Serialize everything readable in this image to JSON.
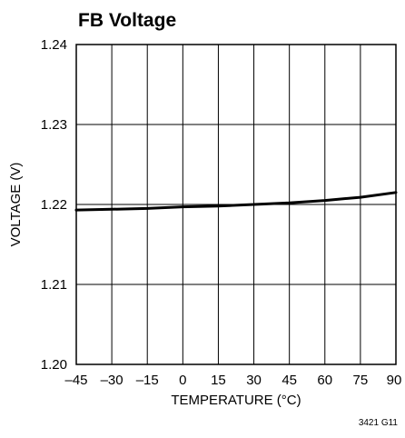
{
  "chart_data": {
    "type": "line",
    "title": "FB Voltage",
    "xlabel": "TEMPERATURE (°C)",
    "ylabel": "VOLTAGE (V)",
    "xlim": [
      -45,
      90
    ],
    "ylim": [
      1.2,
      1.24
    ],
    "x_ticks": [
      -45,
      -30,
      -15,
      0,
      15,
      30,
      45,
      60,
      75,
      90
    ],
    "x_tick_labels": [
      "–45",
      "–30",
      "–15",
      "0",
      "15",
      "30",
      "45",
      "60",
      "75",
      "90"
    ],
    "y_ticks": [
      1.2,
      1.21,
      1.22,
      1.23,
      1.24
    ],
    "y_tick_labels": [
      "1.20",
      "1.21",
      "1.22",
      "1.23",
      "1.24"
    ],
    "grid": true,
    "series": [
      {
        "x": [
          -45,
          -30,
          -15,
          0,
          15,
          30,
          45,
          60,
          75,
          90
        ],
        "y": [
          1.2193,
          1.2194,
          1.2195,
          1.2197,
          1.2198,
          1.22,
          1.2202,
          1.2205,
          1.2209,
          1.2215
        ]
      }
    ],
    "annotation": "3421 G11"
  },
  "colors": {
    "line": "#000000",
    "background": "#ffffff"
  }
}
